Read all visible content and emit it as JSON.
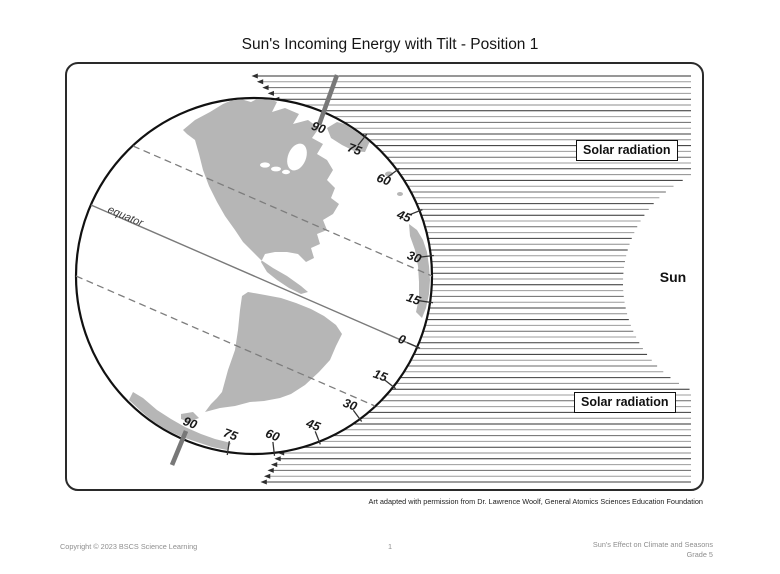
{
  "page": {
    "title": "Sun's Incoming Energy with Tilt - Position 1",
    "caption": "Art adapted with permission from Dr. Lawrence Woolf, General Atomics Sciences Education Foundation",
    "footer": {
      "copyright": "Copyright © 2023 BSCS Science Learning",
      "page_number": "1",
      "course": "Sun's Effect on Climate and Seasons",
      "grade": "Grade 5"
    }
  },
  "diagram": {
    "sun_label": "Sun",
    "solar_radiation_label": "Solar radiation",
    "equator_label": "equator",
    "axis_tilt_degrees": 23.5,
    "latitudes": [
      {
        "label": "90",
        "deg": 90
      },
      {
        "label": "75",
        "deg": 75
      },
      {
        "label": "60",
        "deg": 60
      },
      {
        "label": "45",
        "deg": 45
      },
      {
        "label": "30",
        "deg": 30
      },
      {
        "label": "15",
        "deg": 15
      },
      {
        "label": "0",
        "deg": 0
      },
      {
        "label": "15",
        "deg": -15
      },
      {
        "label": "30",
        "deg": -30
      },
      {
        "label": "45",
        "deg": -45
      },
      {
        "label": "60",
        "deg": -60
      },
      {
        "label": "75",
        "deg": -75
      },
      {
        "label": "90",
        "deg": -90
      }
    ],
    "colors": {
      "land": "#b6b6b6",
      "globe_outline": "#111111",
      "ray_dark": "#2f2f2f",
      "ray_mid": "#6a6a6a",
      "ray_light": "#9c9c9c",
      "grid_gray": "#7d7d7d",
      "axis_gray": "#787878"
    }
  }
}
